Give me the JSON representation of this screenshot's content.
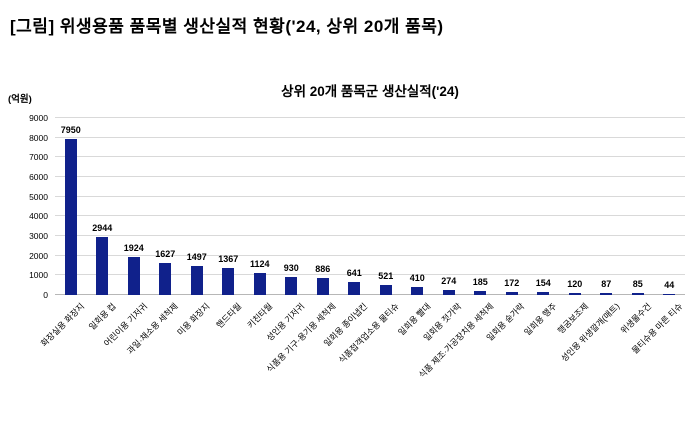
{
  "header": {
    "title": "[그림] 위생용품 품목별 생산실적 현황('24, 상위 20개 품목)"
  },
  "chart_data": {
    "type": "bar",
    "title": "상위 20개 품목군 생산실적('24)",
    "unit_label": "(억원)",
    "categories": [
      "화장실용 화장지",
      "일회용 컵",
      "어린이용 기저귀",
      "과일·채소용 세척제",
      "미용 화장지",
      "핸드타월",
      "키친타월",
      "성인용 기저귀",
      "식품용 기구·용기용 세척제",
      "일회용 종이냅킨",
      "식품접객업소용 물티슈",
      "일회용 빨대",
      "일회용 젓가락",
      "식품 제조·가공장치용 세척제",
      "일회용 숟가락",
      "일회용 행주",
      "헹굼보조제",
      "성인용 위생깔개(매트)",
      "위생물수건",
      "물티슈용 마른 티슈"
    ],
    "values": [
      7950,
      2944,
      1924,
      1627,
      1497,
      1367,
      1124,
      930,
      886,
      641,
      521,
      410,
      274,
      185,
      172,
      154,
      120,
      87,
      85,
      44
    ],
    "ylim": [
      0,
      9000
    ],
    "yticks": [
      0,
      1000,
      2000,
      3000,
      4000,
      5000,
      6000,
      7000,
      8000,
      9000
    ],
    "grid": true,
    "legend": "none",
    "bar_color": "#10218b"
  }
}
